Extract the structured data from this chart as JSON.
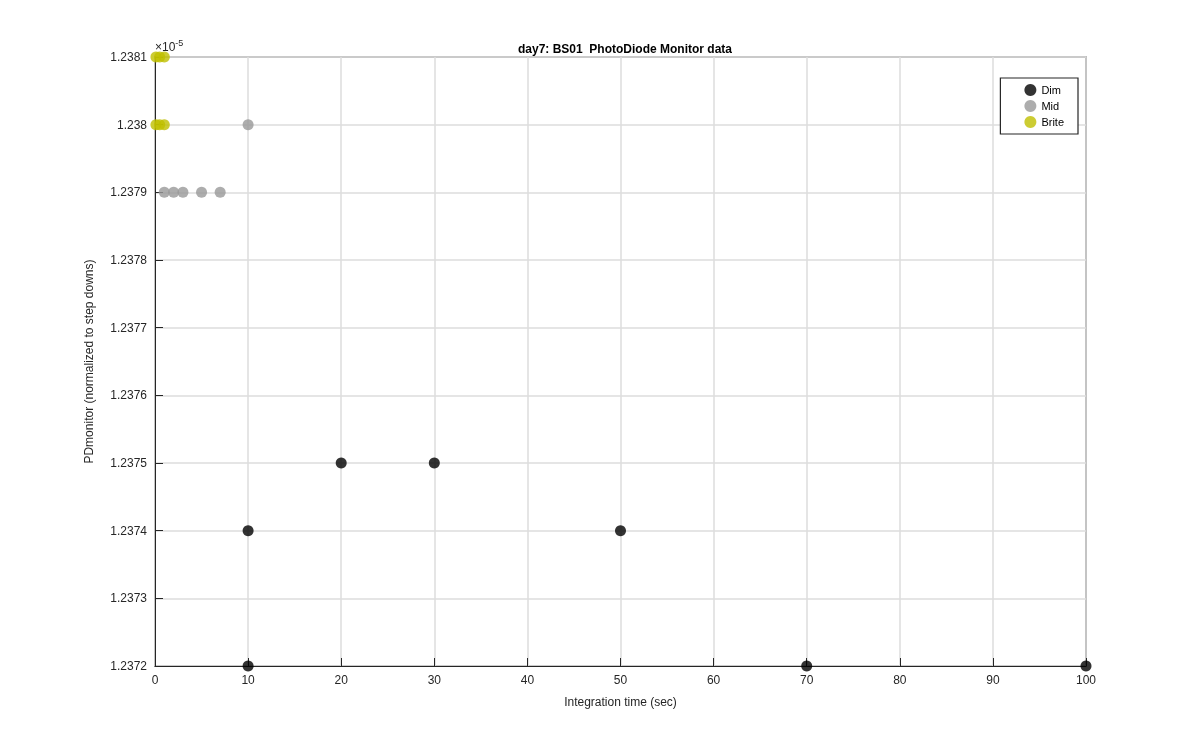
{
  "chart_data": {
    "type": "scatter",
    "title": "day7: BS01  PhotoDiode Monitor data",
    "xlabel": "Integration time (sec)",
    "ylabel": "PDmonitor (normalized to step downs)",
    "annotations": [
      "×10$^{-5}$"
    ],
    "series": [
      {
        "name": "Dim",
        "color": "#000000",
        "x": [
          10,
          10,
          20,
          30,
          50,
          70,
          100
        ],
        "values": [
          1.2374,
          1.2372,
          1.2375,
          1.2375,
          1.2374,
          1.2372,
          1.2372
        ]
      },
      {
        "name": "Mid",
        "color": "#999999",
        "x": [
          1,
          2,
          3,
          5,
          7,
          10
        ],
        "values": [
          1.2379,
          1.2379,
          1.2379,
          1.2379,
          1.2379,
          1.238
        ]
      },
      {
        "name": "Brite",
        "color": "#bfbf00",
        "x": [
          0.1,
          0.5,
          1,
          0.1,
          0.5,
          1
        ],
        "values": [
          1.2381,
          1.2381,
          1.2381,
          1.238,
          1.238,
          1.238
        ]
      }
    ],
    "xlim": [
      0,
      100
    ],
    "xticks": [
      0,
      10,
      20,
      30,
      40,
      50,
      60,
      70,
      80,
      90,
      100
    ],
    "ylim": [
      1.2372,
      1.2381
    ],
    "yticks": [
      1.2372,
      1.2373,
      1.2374,
      1.2375,
      1.2376,
      1.2377,
      1.2378,
      1.2379,
      1.238,
      1.2381
    ],
    "grid": true,
    "legend": "top right",
    "marker": "circle"
  }
}
